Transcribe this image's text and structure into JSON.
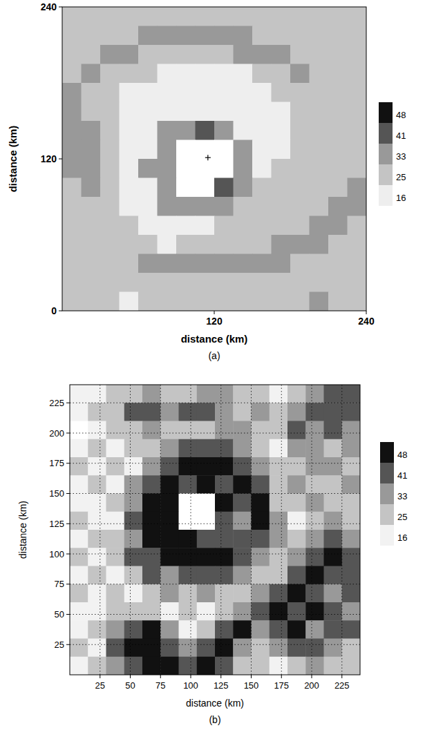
{
  "chart_data": [
    {
      "type": "heatmap",
      "caption": "(a)",
      "xlabel": "distance (km)",
      "ylabel": "distance (km)",
      "xlim": [
        0,
        240
      ],
      "ylim": [
        0,
        240
      ],
      "xticks": [
        120,
        240
      ],
      "yticks": [
        0,
        120,
        240
      ],
      "grid": false,
      "x_edges": [
        0,
        15,
        30,
        45,
        60,
        75,
        90,
        105,
        120,
        135,
        150,
        165,
        180,
        195,
        210,
        225,
        240
      ],
      "y_edges": [
        240,
        225,
        210,
        195,
        180,
        165,
        150,
        135,
        120,
        105,
        90,
        75,
        60,
        45,
        30,
        15,
        0
      ],
      "cells": [
        [
          30,
          30,
          30,
          30,
          30,
          30,
          30,
          30,
          30,
          30,
          30,
          30,
          30,
          30,
          30,
          30
        ],
        [
          30,
          30,
          30,
          30,
          37,
          37,
          37,
          37,
          37,
          37,
          30,
          30,
          30,
          30,
          30,
          30
        ],
        [
          30,
          30,
          37,
          37,
          30,
          30,
          30,
          30,
          30,
          37,
          37,
          37,
          30,
          30,
          30,
          30
        ],
        [
          30,
          37,
          30,
          30,
          30,
          20,
          20,
          20,
          20,
          20,
          30,
          30,
          37,
          30,
          30,
          30
        ],
        [
          37,
          30,
          30,
          20,
          20,
          20,
          20,
          20,
          20,
          20,
          20,
          30,
          30,
          30,
          30,
          30
        ],
        [
          37,
          30,
          30,
          20,
          20,
          20,
          20,
          20,
          20,
          20,
          20,
          20,
          30,
          30,
          30,
          30
        ],
        [
          37,
          37,
          30,
          20,
          20,
          37,
          37,
          45,
          37,
          20,
          20,
          20,
          30,
          30,
          30,
          30
        ],
        [
          37,
          37,
          30,
          20,
          20,
          37,
          10,
          10,
          10,
          37,
          20,
          20,
          30,
          30,
          30,
          30
        ],
        [
          37,
          37,
          30,
          20,
          37,
          37,
          10,
          10,
          10,
          37,
          20,
          30,
          30,
          30,
          30,
          30
        ],
        [
          30,
          37,
          30,
          20,
          20,
          37,
          10,
          10,
          45,
          37,
          30,
          30,
          30,
          30,
          30,
          37
        ],
        [
          30,
          30,
          30,
          20,
          20,
          37,
          37,
          37,
          37,
          30,
          30,
          30,
          30,
          30,
          37,
          37
        ],
        [
          30,
          30,
          30,
          30,
          20,
          20,
          20,
          20,
          30,
          30,
          30,
          30,
          30,
          37,
          37,
          30
        ],
        [
          30,
          30,
          30,
          30,
          30,
          20,
          30,
          30,
          30,
          30,
          30,
          37,
          37,
          37,
          30,
          30
        ],
        [
          30,
          30,
          30,
          30,
          37,
          37,
          37,
          37,
          37,
          37,
          37,
          37,
          30,
          30,
          30,
          30
        ],
        [
          30,
          30,
          30,
          30,
          30,
          30,
          30,
          30,
          30,
          30,
          30,
          30,
          30,
          30,
          30,
          30
        ],
        [
          30,
          30,
          30,
          20,
          30,
          30,
          30,
          30,
          30,
          30,
          30,
          30,
          30,
          37,
          30,
          30
        ]
      ],
      "storm_center": {
        "x": 115,
        "y": 121
      },
      "colorbar": {
        "ticks": [
          16,
          25,
          33,
          41,
          48
        ],
        "colors": [
          "#eeeeee",
          "#c4c4c4",
          "#999999",
          "#555555",
          "#111111"
        ]
      }
    },
    {
      "type": "heatmap",
      "caption": "(b)",
      "xlabel": "distance (km)",
      "ylabel": "distance (km)",
      "xlim": [
        0,
        240
      ],
      "ylim": [
        0,
        240
      ],
      "xticks": [
        25,
        50,
        75,
        100,
        125,
        150,
        175,
        200,
        225
      ],
      "yticks": [
        25,
        50,
        75,
        100,
        125,
        150,
        175,
        200,
        225
      ],
      "grid": true,
      "x_edges": [
        0,
        15,
        30,
        45,
        60,
        75,
        90,
        105,
        120,
        135,
        150,
        165,
        180,
        195,
        210,
        225,
        240
      ],
      "y_edges": [
        240,
        225,
        210,
        195,
        180,
        165,
        150,
        135,
        120,
        105,
        90,
        75,
        60,
        45,
        30,
        15,
        0
      ],
      "cells": [
        [
          20,
          20,
          30,
          30,
          37,
          30,
          30,
          37,
          37,
          30,
          30,
          20,
          30,
          37,
          45,
          45
        ],
        [
          20,
          30,
          30,
          45,
          45,
          37,
          45,
          45,
          37,
          30,
          37,
          30,
          37,
          45,
          45,
          45
        ],
        [
          10,
          20,
          30,
          30,
          37,
          30,
          30,
          30,
          37,
          37,
          30,
          30,
          45,
          37,
          45,
          37
        ],
        [
          20,
          30,
          20,
          30,
          30,
          37,
          45,
          45,
          45,
          37,
          30,
          20,
          37,
          37,
          30,
          37
        ],
        [
          30,
          20,
          30,
          20,
          37,
          45,
          50,
          50,
          50,
          45,
          37,
          30,
          30,
          37,
          37,
          30
        ],
        [
          20,
          30,
          20,
          37,
          45,
          50,
          45,
          50,
          45,
          50,
          45,
          30,
          37,
          30,
          30,
          37
        ],
        [
          20,
          20,
          30,
          37,
          50,
          50,
          10,
          10,
          50,
          45,
          50,
          30,
          30,
          37,
          30,
          30
        ],
        [
          30,
          20,
          20,
          45,
          50,
          50,
          10,
          10,
          45,
          37,
          50,
          37,
          20,
          30,
          37,
          30
        ],
        [
          20,
          30,
          30,
          37,
          50,
          50,
          50,
          45,
          45,
          45,
          45,
          37,
          30,
          37,
          45,
          37
        ],
        [
          30,
          20,
          30,
          45,
          45,
          50,
          50,
          50,
          50,
          45,
          37,
          30,
          37,
          45,
          50,
          45
        ],
        [
          20,
          30,
          20,
          30,
          45,
          37,
          45,
          45,
          45,
          37,
          30,
          30,
          45,
          50,
          45,
          45
        ],
        [
          30,
          20,
          30,
          20,
          30,
          37,
          30,
          37,
          30,
          30,
          37,
          45,
          50,
          45,
          37,
          45
        ],
        [
          20,
          20,
          30,
          30,
          30,
          20,
          30,
          20,
          30,
          37,
          45,
          50,
          45,
          50,
          45,
          37
        ],
        [
          20,
          30,
          37,
          45,
          50,
          37,
          20,
          30,
          45,
          50,
          37,
          45,
          50,
          37,
          45,
          45
        ],
        [
          30,
          20,
          45,
          50,
          50,
          45,
          37,
          45,
          50,
          37,
          30,
          37,
          45,
          45,
          37,
          30
        ],
        [
          20,
          30,
          37,
          45,
          50,
          50,
          45,
          50,
          45,
          30,
          30,
          20,
          30,
          37,
          30,
          30
        ]
      ],
      "colorbar": {
        "ticks": [
          16,
          25,
          33,
          41,
          48
        ],
        "colors": [
          "#f2f2f2",
          "#c4c4c4",
          "#999999",
          "#555555",
          "#111111"
        ]
      }
    }
  ]
}
